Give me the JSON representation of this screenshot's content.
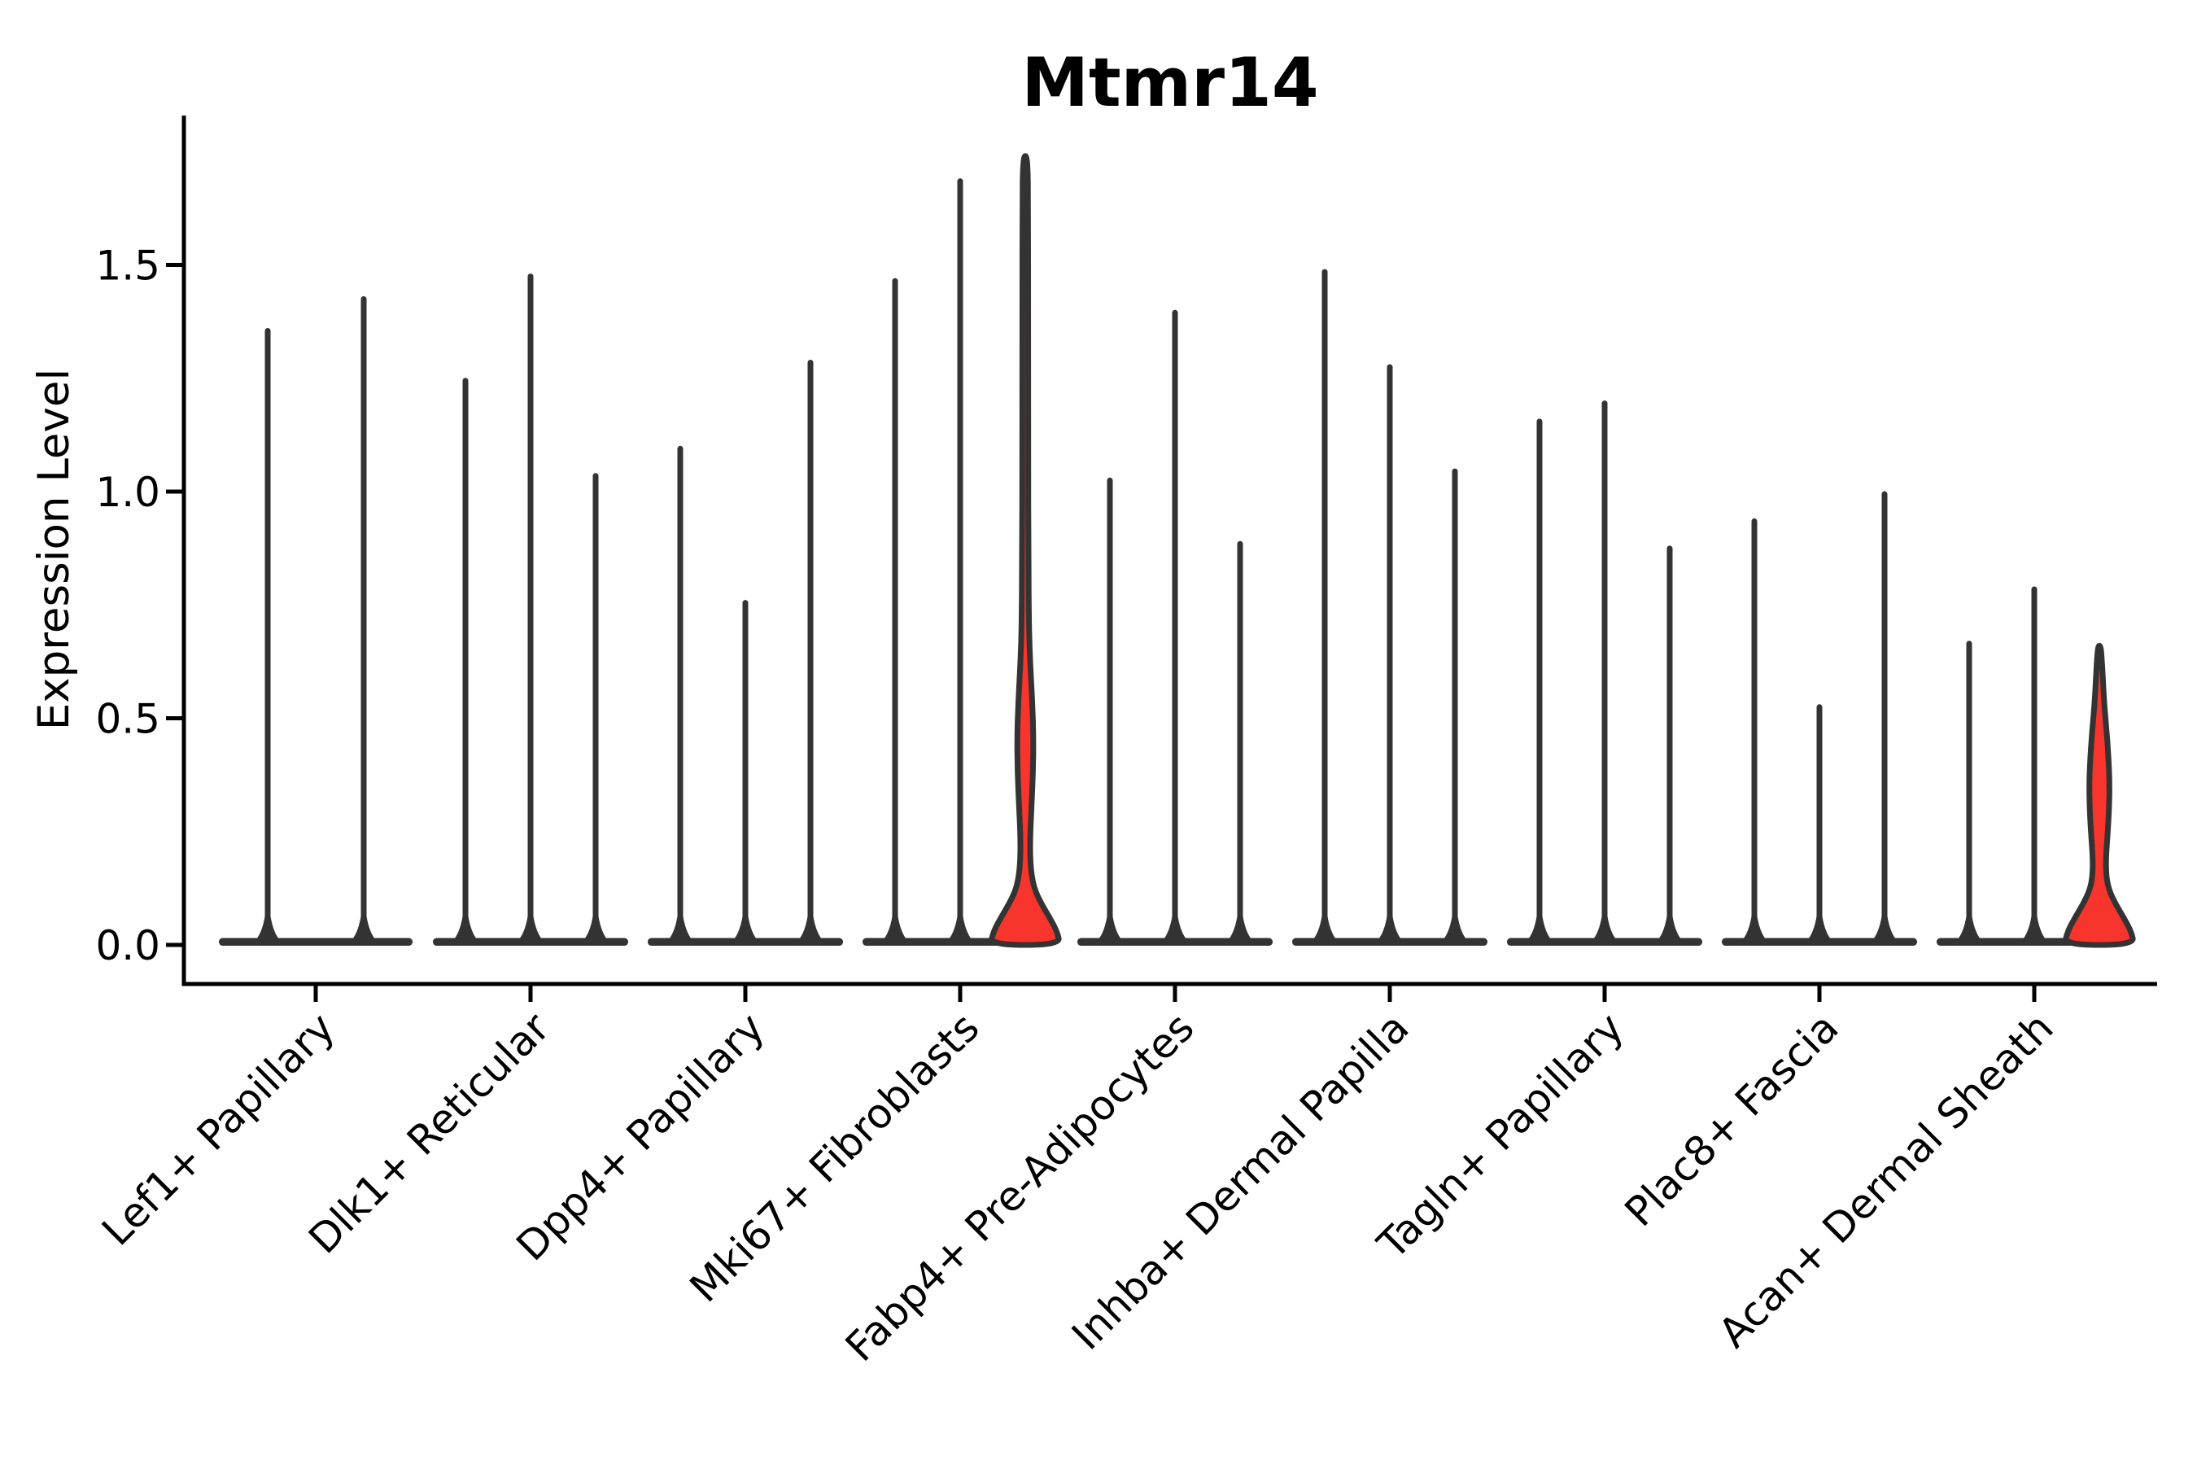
{
  "title": "Mtmr14",
  "y_axis": {
    "label": "Expression Level",
    "tick_labels": [
      "0.0",
      "0.5",
      "1.0",
      "1.5"
    ],
    "tick_values": [
      0.0,
      0.5,
      1.0,
      1.5
    ]
  },
  "x_axis": {
    "categories": [
      "Lef1+ Papillary",
      "Dlk1+ Reticular",
      "Dpp4+ Papillary",
      "Mki67+ Fibroblasts",
      "Fabp4+ Pre-Adipocytes",
      "Inhba+ Dermal Papilla",
      "Tagln+ Papillary",
      "Plac8+ Fascia",
      "Acan+ Dermal Sheath"
    ]
  },
  "colors": {
    "highlight_fill": "#F8352C",
    "violin_stroke": "#333333",
    "axis": "#000000",
    "text": "#000000",
    "background": "#FFFFFF"
  },
  "chart_data": {
    "type": "violin",
    "title": "Mtmr14",
    "xlabel": "",
    "ylabel": "Expression Level",
    "ylim": [
      -0.086,
      1.83
    ],
    "yticks": [
      0.0,
      0.5,
      1.0,
      1.5
    ],
    "grid": "off",
    "legend": "none",
    "description": "Single-cell expression violin plot; each category holds 2-3 extremely thin violins (most cells at 0 with rare high-expressing outliers, so violins collapse to a flat base at 0 plus a thin spike to the max value). Two violins are red-filled with visible density bulges near 0.",
    "categories": [
      "Lef1+ Papillary",
      "Dlk1+ Reticular",
      "Dpp4+ Papillary",
      "Mki67+ Fibroblasts",
      "Fabp4+ Pre-Adipocytes",
      "Inhba+ Dermal Papilla",
      "Tagln+ Papillary",
      "Plac8+ Fascia",
      "Acan+ Dermal Sheath"
    ],
    "groups": [
      {
        "category": "Lef1+ Papillary",
        "violin_max_values": [
          1.36,
          1.43
        ],
        "highlight_index": -1
      },
      {
        "category": "Dlk1+ Reticular",
        "violin_max_values": [
          1.25,
          1.48,
          1.04
        ],
        "highlight_index": -1
      },
      {
        "category": "Dpp4+ Papillary",
        "violin_max_values": [
          1.1,
          0.76,
          1.29
        ],
        "highlight_index": -1
      },
      {
        "category": "Mki67+ Fibroblasts",
        "violin_max_values": [
          1.47,
          1.69,
          1.74
        ],
        "highlight_index": 2
      },
      {
        "category": "Fabp4+ Pre-Adipocytes",
        "violin_max_values": [
          1.03,
          1.4,
          0.89
        ],
        "highlight_index": -1
      },
      {
        "category": "Inhba+ Dermal Papilla",
        "violin_max_values": [
          1.49,
          1.28,
          1.05
        ],
        "highlight_index": -1
      },
      {
        "category": "Tagln+ Papillary",
        "violin_max_values": [
          1.16,
          1.2,
          0.88
        ],
        "highlight_index": -1
      },
      {
        "category": "Plac8+ Fascia",
        "violin_max_values": [
          0.94,
          0.53,
          1.0
        ],
        "highlight_index": -1
      },
      {
        "category": "Acan+ Dermal Sheath",
        "violin_max_values": [
          0.67,
          0.79,
          0.66
        ],
        "highlight_index": 2
      }
    ],
    "highlight_profiles": {
      "note": "density outline for red violins as [expression_value, half_width_px] pairs, bottom to top",
      "3": [
        [
          0.0,
          43
        ],
        [
          0.03,
          39
        ],
        [
          0.06,
          30
        ],
        [
          0.09,
          20
        ],
        [
          0.12,
          12
        ],
        [
          0.15,
          8
        ],
        [
          0.19,
          6
        ],
        [
          0.24,
          6
        ],
        [
          0.3,
          7.5
        ],
        [
          0.38,
          9.5
        ],
        [
          0.46,
          10
        ],
        [
          0.54,
          8.5
        ],
        [
          0.62,
          6
        ],
        [
          0.7,
          4.5
        ],
        [
          0.85,
          3.8
        ],
        [
          1.1,
          3.6
        ],
        [
          1.4,
          3.6
        ],
        [
          1.65,
          3.4
        ],
        [
          1.71,
          3
        ],
        [
          1.74,
          1.5
        ]
      ],
      "8": [
        [
          0.0,
          43
        ],
        [
          0.03,
          39
        ],
        [
          0.06,
          30
        ],
        [
          0.09,
          20
        ],
        [
          0.12,
          12
        ],
        [
          0.15,
          8.5
        ],
        [
          0.19,
          8
        ],
        [
          0.24,
          10
        ],
        [
          0.3,
          12
        ],
        [
          0.36,
          12.5
        ],
        [
          0.42,
          11
        ],
        [
          0.48,
          8.5
        ],
        [
          0.53,
          6
        ],
        [
          0.58,
          4.5
        ],
        [
          0.63,
          3
        ],
        [
          0.66,
          1.5
        ]
      ]
    }
  }
}
